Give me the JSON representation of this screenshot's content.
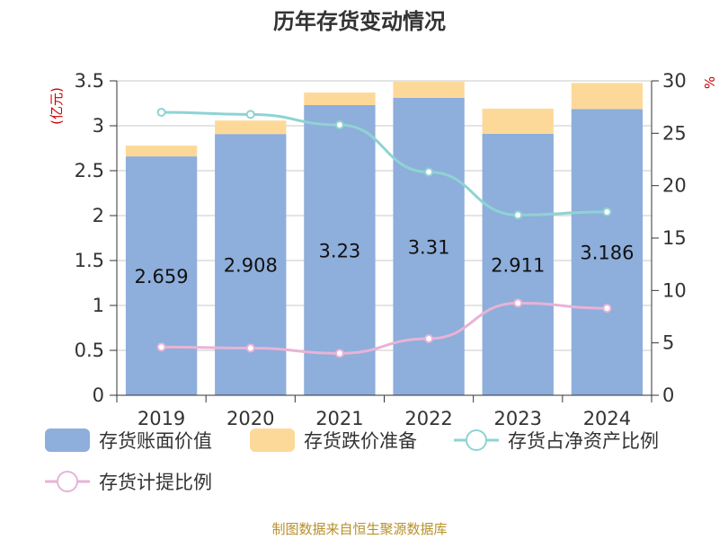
{
  "chart_data": {
    "type": "bar",
    "title": "历年存货变动情况",
    "y_left_unit": "(亿元)",
    "y_right_unit": "%",
    "categories": [
      "2019",
      "2020",
      "2021",
      "2022",
      "2023",
      "2024"
    ],
    "series": [
      {
        "name": "存货账面价值",
        "type": "bar",
        "stack": "a",
        "axis": "left",
        "color": "#8eaedb",
        "values": [
          2.659,
          2.908,
          3.23,
          3.31,
          2.911,
          3.186
        ]
      },
      {
        "name": "存货跌价准备",
        "type": "bar",
        "stack": "a",
        "axis": "left",
        "color": "#fdd999",
        "values": [
          0.12,
          0.15,
          0.14,
          0.18,
          0.28,
          0.29
        ]
      },
      {
        "name": "存货占净资产比例",
        "type": "line",
        "axis": "right",
        "color": "#8fd3d3",
        "values": [
          27.0,
          26.8,
          25.8,
          21.3,
          17.2,
          17.5
        ]
      },
      {
        "name": "存货计提比例",
        "type": "line",
        "axis": "right",
        "color": "#e8b3d6",
        "values": [
          4.6,
          4.5,
          4.0,
          5.4,
          8.8,
          8.3
        ]
      }
    ],
    "ylim_left": [
      0,
      3.5
    ],
    "yticks_left": [
      "0",
      "0.5",
      "1",
      "1.5",
      "2",
      "2.5",
      "3",
      "3.5"
    ],
    "ylim_right": [
      0,
      30
    ],
    "yticks_right": [
      "0",
      "5",
      "10",
      "15",
      "20",
      "25",
      "30"
    ],
    "data_labels": [
      "2.659",
      "2.908",
      "3.23",
      "3.31",
      "2.911",
      "3.186"
    ],
    "grid": true,
    "legend_position": "bottom-left"
  },
  "source_note": "制图数据来自恒生聚源数据库"
}
